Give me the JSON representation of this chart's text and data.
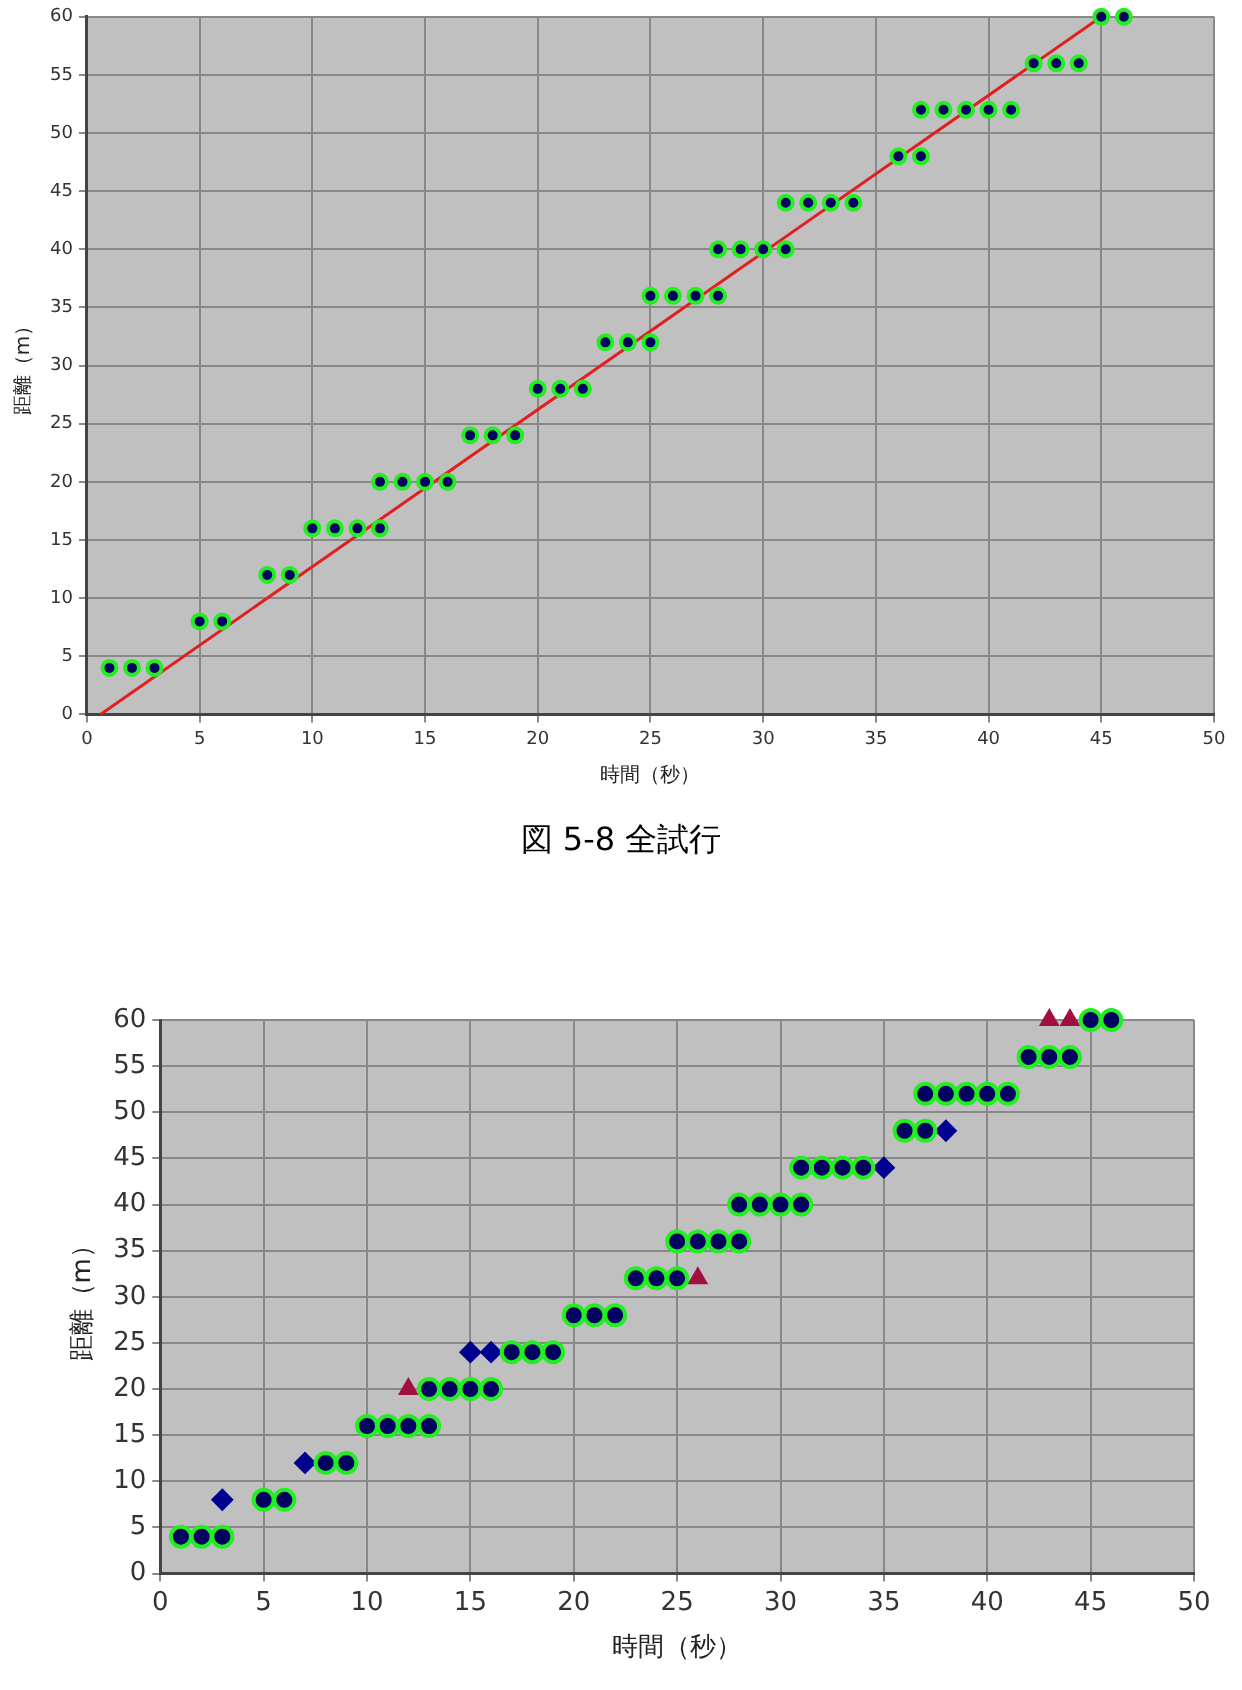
{
  "chart_data": [
    {
      "type": "scatter",
      "xlabel": "時間（秒）",
      "ylabel": "距離（m）",
      "xlim": [
        0,
        50
      ],
      "ylim": [
        0,
        60
      ],
      "xticks": [
        0,
        5,
        10,
        15,
        20,
        25,
        30,
        35,
        40,
        45,
        50
      ],
      "yticks": [
        0,
        5,
        10,
        15,
        20,
        25,
        30,
        35,
        40,
        45,
        50,
        55,
        60
      ],
      "grid": true,
      "legend": false,
      "annotations": [
        "図 5-8  全試行"
      ],
      "series": [
        {
          "type": "scatter",
          "marker": "circle",
          "color": "#000060",
          "x": [
            1,
            2,
            3,
            5,
            6,
            8,
            9,
            10,
            11,
            12,
            13,
            13,
            14,
            15,
            16,
            17,
            18,
            19,
            20,
            21,
            22,
            23,
            24,
            25,
            25,
            26,
            27,
            28,
            28,
            29,
            30,
            31,
            31,
            32,
            33,
            34,
            36,
            37,
            37,
            38,
            39,
            40,
            41,
            42,
            43,
            44,
            45,
            46
          ],
          "values": [
            4,
            4,
            4,
            8,
            8,
            12,
            12,
            16,
            16,
            16,
            16,
            20,
            20,
            20,
            20,
            24,
            24,
            24,
            28,
            28,
            28,
            32,
            32,
            32,
            36,
            36,
            36,
            36,
            40,
            40,
            40,
            40,
            44,
            44,
            44,
            44,
            48,
            48,
            52,
            52,
            52,
            52,
            52,
            56,
            56,
            56,
            60,
            60
          ]
        },
        {
          "type": "line",
          "marker": "none",
          "line_style": "solid",
          "color": "#e02020",
          "x": [
            0.6,
            45
          ],
          "values": [
            0,
            60
          ]
        }
      ]
    },
    {
      "type": "scatter",
      "xlabel": "時間（秒）",
      "ylabel": "距離（m）",
      "xlim": [
        0,
        50
      ],
      "ylim": [
        0,
        60
      ],
      "xticks": [
        0,
        5,
        10,
        15,
        20,
        25,
        30,
        35,
        40,
        45,
        50
      ],
      "yticks": [
        0,
        5,
        10,
        15,
        20,
        25,
        30,
        35,
        40,
        45,
        50,
        55,
        60
      ],
      "grid": true,
      "legend": false,
      "series": [
        {
          "type": "scatter",
          "marker": "circle",
          "color": "#000060",
          "x": [
            1,
            2,
            3,
            5,
            6,
            8,
            9,
            10,
            11,
            12,
            13,
            13,
            14,
            15,
            16,
            17,
            18,
            19,
            20,
            21,
            22,
            23,
            24,
            25,
            25,
            26,
            27,
            28,
            28,
            29,
            30,
            31,
            31,
            32,
            33,
            34,
            36,
            37,
            37,
            38,
            39,
            40,
            41,
            42,
            43,
            44,
            45,
            46
          ],
          "values": [
            4,
            4,
            4,
            8,
            8,
            12,
            12,
            16,
            16,
            16,
            16,
            20,
            20,
            20,
            20,
            24,
            24,
            24,
            28,
            28,
            28,
            32,
            32,
            32,
            36,
            36,
            36,
            36,
            40,
            40,
            40,
            40,
            44,
            44,
            44,
            44,
            48,
            48,
            52,
            52,
            52,
            52,
            52,
            56,
            56,
            56,
            60,
            60
          ]
        },
        {
          "type": "scatter",
          "marker": "diamond",
          "color": "#000090",
          "x": [
            3,
            7,
            15,
            16,
            35,
            38
          ],
          "values": [
            8,
            12,
            24,
            24,
            44,
            48
          ]
        },
        {
          "type": "scatter",
          "marker": "triangle",
          "color": "#a01040",
          "x": [
            12,
            26,
            43,
            44
          ],
          "values": [
            20,
            32,
            60,
            60
          ]
        }
      ]
    }
  ]
}
